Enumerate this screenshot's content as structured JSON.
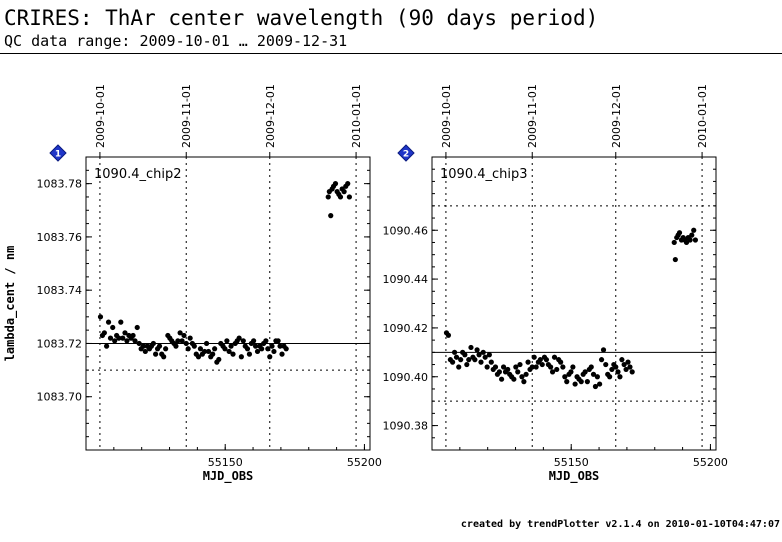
{
  "header": {
    "title": "CRIRES: ThAr center wavelength (90 days period)",
    "subtitle": "QC data range: 2009-10-01 … 2009-12-31"
  },
  "footer": "created by trendPlotter v2.1.4 on 2010-01-10T04:47:07",
  "colors": {
    "points": "#000000",
    "badge": "#1f35c8",
    "reference_line": "#000000",
    "threshold_line": "#000000"
  },
  "chart_data": [
    {
      "type": "scatter",
      "badge": "1",
      "panel_label": "1090.4_chip2",
      "xlabel": "MJD_OBS",
      "ylabel": "lambda_cent / nm",
      "xlim": [
        55100,
        55202
      ],
      "ylim": [
        1083.68,
        1083.79
      ],
      "xticks": [
        55150,
        55200
      ],
      "yticks": [
        1083.7,
        1083.72,
        1083.74,
        1083.76,
        1083.78
      ],
      "ytick_labels": [
        "1083.70",
        "1083.72",
        "1083.74",
        "1083.76",
        "1083.78"
      ],
      "date_markers": [
        {
          "label": "2009-10-01",
          "mjd": 55105
        },
        {
          "label": "2009-11-01",
          "mjd": 55136
        },
        {
          "label": "2009-12-01",
          "mjd": 55166
        },
        {
          "label": "2010-01-01",
          "mjd": 55197
        }
      ],
      "reference_line": 1083.72,
      "threshold_lines": [
        1083.71,
        1083.79
      ],
      "grid": "dotted vertical lines at month boundaries",
      "x": [
        55105.2,
        55105.9,
        55106.6,
        55107.4,
        55108.1,
        55108.8,
        55109.6,
        55110.3,
        55111.0,
        55111.8,
        55112.5,
        55113.2,
        55114.0,
        55114.7,
        55115.4,
        55116.2,
        55116.9,
        55117.6,
        55118.4,
        55119.1,
        55119.8,
        55120.6,
        55121.3,
        55122.0,
        55122.8,
        55123.5,
        55124.2,
        55125.0,
        55125.7,
        55126.4,
        55127.2,
        55127.9,
        55128.6,
        55129.4,
        55130.1,
        55130.8,
        55131.6,
        55132.3,
        55133.0,
        55133.8,
        55134.5,
        55135.2,
        55136.0,
        55136.7,
        55137.4,
        55138.2,
        55138.9,
        55139.6,
        55140.4,
        55141.1,
        55141.8,
        55142.6,
        55143.3,
        55144.0,
        55144.8,
        55145.5,
        55146.2,
        55147.0,
        55147.7,
        55148.4,
        55149.2,
        55149.9,
        55150.6,
        55151.4,
        55152.1,
        55152.8,
        55153.6,
        55154.3,
        55155.0,
        55155.8,
        55156.5,
        55157.2,
        55158.0,
        55158.7,
        55159.4,
        55160.2,
        55160.9,
        55161.6,
        55162.4,
        55163.1,
        55163.8,
        55164.6,
        55165.3,
        55166.0,
        55166.8,
        55167.5,
        55168.2,
        55169.0,
        55169.7,
        55170.4,
        55171.1,
        55171.9,
        55187.0,
        55187.4,
        55187.9,
        55188.4,
        55188.9,
        55189.6,
        55190.2,
        55190.8,
        55191.4,
        55192.0,
        55192.7,
        55193.3,
        55194.0,
        55194.6
      ],
      "y": [
        1083.73,
        1083.723,
        1083.724,
        1083.719,
        1083.728,
        1083.722,
        1083.726,
        1083.721,
        1083.723,
        1083.722,
        1083.728,
        1083.722,
        1083.724,
        1083.721,
        1083.723,
        1083.722,
        1083.723,
        1083.721,
        1083.726,
        1083.72,
        1083.718,
        1083.719,
        1083.717,
        1083.719,
        1083.718,
        1083.719,
        1083.72,
        1083.716,
        1083.718,
        1083.719,
        1083.716,
        1083.715,
        1083.718,
        1083.723,
        1083.722,
        1083.721,
        1083.72,
        1083.719,
        1083.721,
        1083.724,
        1083.721,
        1083.723,
        1083.72,
        1083.718,
        1083.722,
        1083.72,
        1083.719,
        1083.716,
        1083.715,
        1083.718,
        1083.716,
        1083.717,
        1083.72,
        1083.717,
        1083.715,
        1083.716,
        1083.718,
        1083.713,
        1083.714,
        1083.72,
        1083.719,
        1083.718,
        1083.721,
        1083.717,
        1083.719,
        1083.716,
        1083.72,
        1083.721,
        1083.722,
        1083.715,
        1083.721,
        1083.719,
        1083.718,
        1083.716,
        1083.72,
        1083.721,
        1083.719,
        1083.717,
        1083.719,
        1083.718,
        1083.72,
        1083.721,
        1083.718,
        1083.715,
        1083.719,
        1083.717,
        1083.721,
        1083.721,
        1083.719,
        1083.716,
        1083.719,
        1083.718,
        1083.775,
        1083.777,
        1083.768,
        1083.778,
        1083.779,
        1083.78,
        1083.777,
        1083.776,
        1083.775,
        1083.778,
        1083.777,
        1083.779,
        1083.78,
        1083.775
      ]
    },
    {
      "type": "scatter",
      "badge": "2",
      "panel_label": "1090.4_chip3",
      "xlabel": "MJD_OBS",
      "ylabel": "",
      "xlim": [
        55100,
        55202
      ],
      "ylim": [
        1090.37,
        1090.49
      ],
      "xticks": [
        55150,
        55200
      ],
      "yticks": [
        1090.38,
        1090.4,
        1090.42,
        1090.44,
        1090.46
      ],
      "ytick_labels": [
        "1090.38",
        "1090.40",
        "1090.42",
        "1090.44",
        "1090.46"
      ],
      "date_markers": [
        {
          "label": "2009-10-01",
          "mjd": 55105
        },
        {
          "label": "2009-11-01",
          "mjd": 55136
        },
        {
          "label": "2009-12-01",
          "mjd": 55166
        },
        {
          "label": "2010-01-01",
          "mjd": 55197
        }
      ],
      "reference_line": 1090.41,
      "threshold_lines": [
        1090.39,
        1090.47
      ],
      "grid": "dotted vertical lines at month boundaries",
      "x": [
        55105.2,
        55105.9,
        55106.6,
        55107.4,
        55108.1,
        55108.8,
        55109.6,
        55110.3,
        55111.0,
        55111.8,
        55112.5,
        55113.2,
        55114.0,
        55114.7,
        55115.4,
        55116.2,
        55116.9,
        55117.6,
        55118.4,
        55119.1,
        55119.8,
        55120.6,
        55121.3,
        55122.0,
        55122.8,
        55123.5,
        55124.2,
        55125.0,
        55125.7,
        55126.4,
        55127.2,
        55127.9,
        55128.6,
        55129.4,
        55130.1,
        55130.8,
        55131.6,
        55132.3,
        55133.0,
        55133.8,
        55134.5,
        55135.2,
        55136.0,
        55136.7,
        55137.4,
        55138.2,
        55138.9,
        55139.6,
        55140.4,
        55141.1,
        55141.8,
        55142.6,
        55143.3,
        55144.0,
        55144.8,
        55145.5,
        55146.2,
        55147.0,
        55147.7,
        55148.4,
        55149.2,
        55149.9,
        55150.6,
        55151.4,
        55152.1,
        55152.8,
        55153.6,
        55154.3,
        55155.0,
        55155.8,
        55156.5,
        55157.2,
        55158.0,
        55158.7,
        55159.4,
        55160.2,
        55160.9,
        55161.6,
        55162.4,
        55163.1,
        55163.8,
        55164.6,
        55165.3,
        55166.0,
        55166.8,
        55167.5,
        55168.2,
        55169.0,
        55169.7,
        55170.4,
        55171.1,
        55171.9,
        55187.0,
        55187.4,
        55187.9,
        55188.4,
        55188.9,
        55189.6,
        55190.2,
        55190.8,
        55191.4,
        55192.0,
        55192.7,
        55193.3,
        55194.0,
        55194.6
      ],
      "y": [
        1090.418,
        1090.417,
        1090.407,
        1090.406,
        1090.41,
        1090.408,
        1090.404,
        1090.407,
        1090.41,
        1090.409,
        1090.405,
        1090.407,
        1090.412,
        1090.408,
        1090.407,
        1090.411,
        1090.409,
        1090.406,
        1090.41,
        1090.408,
        1090.404,
        1090.409,
        1090.406,
        1090.403,
        1090.404,
        1090.401,
        1090.402,
        1090.399,
        1090.404,
        1090.402,
        1090.403,
        1090.401,
        1090.4,
        1090.399,
        1090.404,
        1090.402,
        1090.405,
        1090.4,
        1090.398,
        1090.401,
        1090.406,
        1090.403,
        1090.404,
        1090.408,
        1090.404,
        1090.406,
        1090.407,
        1090.405,
        1090.408,
        1090.407,
        1090.405,
        1090.404,
        1090.402,
        1090.408,
        1090.403,
        1090.407,
        1090.406,
        1090.404,
        1090.4,
        1090.398,
        1090.401,
        1090.402,
        1090.404,
        1090.397,
        1090.4,
        1090.399,
        1090.398,
        1090.401,
        1090.402,
        1090.398,
        1090.403,
        1090.404,
        1090.401,
        1090.396,
        1090.4,
        1090.397,
        1090.407,
        1090.411,
        1090.405,
        1090.401,
        1090.4,
        1090.403,
        1090.405,
        1090.404,
        1090.402,
        1090.4,
        1090.407,
        1090.405,
        1090.403,
        1090.406,
        1090.404,
        1090.402,
        1090.455,
        1090.448,
        1090.457,
        1090.458,
        1090.459,
        1090.456,
        1090.457,
        1090.456,
        1090.455,
        1090.457,
        1090.456,
        1090.458,
        1090.46,
        1090.456
      ]
    }
  ]
}
